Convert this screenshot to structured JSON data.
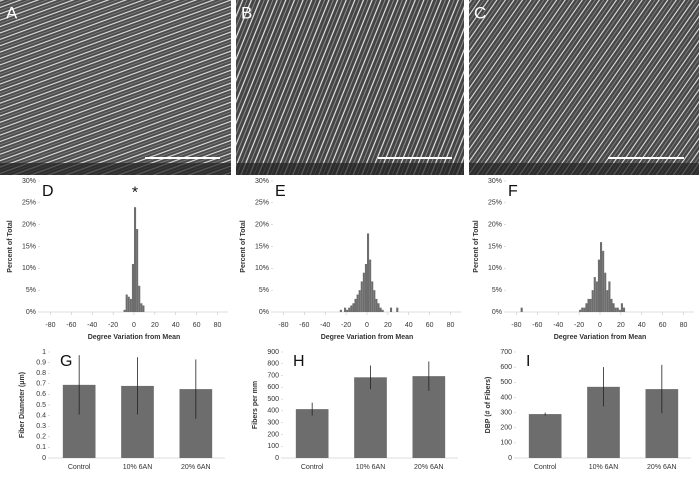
{
  "images": [
    {
      "label": "A"
    },
    {
      "label": "B"
    },
    {
      "label": "C"
    }
  ],
  "chart_data": [
    {
      "type": "histogram",
      "label": "D",
      "annotation": "*",
      "color": "#6d6d6d",
      "xlabel": "Degree Variation from Mean",
      "ylabel": "Percent of Total",
      "bins": [
        -10,
        -8,
        -6,
        -4,
        -2,
        0,
        2,
        4,
        6,
        8,
        10,
        12,
        14
      ],
      "values": [
        0.5,
        4,
        3.5,
        3,
        11,
        24,
        19,
        6,
        2,
        1.5,
        0,
        0
      ],
      "xlim": [
        -90,
        90
      ],
      "xticks": [
        -80,
        -60,
        -40,
        -20,
        0,
        20,
        40,
        60,
        80
      ],
      "ylim": [
        0,
        30
      ],
      "yticks": [
        {
          "value": 0,
          "label": "0%"
        },
        {
          "value": 5,
          "label": "5%"
        },
        {
          "value": 10,
          "label": "10%"
        },
        {
          "value": 15,
          "label": "15%"
        },
        {
          "value": 20,
          "label": "20%"
        },
        {
          "value": 25,
          "label": "25%"
        },
        {
          "value": 30,
          "label": "30%"
        }
      ]
    },
    {
      "type": "histogram",
      "label": "E",
      "color": "#6d6d6d",
      "xlabel": "Degree Variation from Mean",
      "ylabel": "Percent of Total",
      "bins": [
        -26,
        -24,
        -22,
        -20,
        -18,
        -16,
        -14,
        -12,
        -10,
        -8,
        -6,
        -4,
        -2,
        0,
        2,
        4,
        6,
        8,
        10,
        12,
        14,
        16,
        18,
        20,
        22,
        24,
        26,
        28,
        30
      ],
      "values": [
        0.5,
        0,
        1,
        0.5,
        1,
        1.5,
        2,
        3,
        4,
        5,
        7,
        9,
        11,
        18,
        12,
        7,
        5,
        3,
        2,
        1,
        0.5,
        0,
        0,
        0,
        1,
        0,
        0,
        1
      ],
      "xlim": [
        -90,
        90
      ],
      "xticks": [
        -80,
        -60,
        -40,
        -20,
        0,
        20,
        40,
        60,
        80
      ],
      "ylim": [
        0,
        30
      ],
      "yticks": [
        {
          "value": 0,
          "label": "0%"
        },
        {
          "value": 5,
          "label": "5%"
        },
        {
          "value": 10,
          "label": "10%"
        },
        {
          "value": 15,
          "label": "15%"
        },
        {
          "value": 20,
          "label": "20%"
        },
        {
          "value": 25,
          "label": "25%"
        },
        {
          "value": 30,
          "label": "30%"
        }
      ]
    },
    {
      "type": "histogram",
      "label": "F",
      "color": "#6d6d6d",
      "xlabel": "Degree Variation from Mean",
      "ylabel": "Percent of Total",
      "bins": [
        -76,
        -74,
        -72,
        -70,
        -68,
        -66,
        -64,
        -62,
        -60,
        -58,
        -56,
        -54,
        -52,
        -50,
        -48,
        -46,
        -44,
        -42,
        -40,
        -38,
        -36,
        -34,
        -32,
        -30,
        -28,
        -26,
        -24,
        -22,
        -20,
        -18,
        -16,
        -14,
        -12,
        -10,
        -8,
        -6,
        -4,
        -2,
        0,
        2,
        4,
        6,
        8,
        10,
        12,
        14,
        16,
        18,
        20,
        22,
        24
      ],
      "values": [
        1,
        0,
        0,
        0,
        0,
        0,
        0,
        0,
        0,
        0,
        0,
        0,
        0,
        0,
        0,
        0,
        0,
        0,
        0,
        0,
        0,
        0,
        0,
        0,
        0,
        0,
        0,
        0,
        0.5,
        1,
        1,
        2,
        3,
        3,
        5,
        8,
        7,
        12,
        16,
        14,
        9,
        5,
        7,
        3,
        2,
        1,
        1,
        0.5,
        2,
        1
      ],
      "xlim": [
        -90,
        90
      ],
      "xticks": [
        -80,
        -60,
        -40,
        -20,
        0,
        20,
        40,
        60,
        80
      ],
      "ylim": [
        0,
        30
      ],
      "yticks": [
        {
          "value": 0,
          "label": "0%"
        },
        {
          "value": 5,
          "label": "5%"
        },
        {
          "value": 10,
          "label": "10%"
        },
        {
          "value": 15,
          "label": "15%"
        },
        {
          "value": 20,
          "label": "20%"
        },
        {
          "value": 25,
          "label": "25%"
        },
        {
          "value": 30,
          "label": "30%"
        }
      ]
    },
    {
      "type": "bar",
      "label": "G",
      "color": "#6d6d6d",
      "ylabel": "Fiber Diameter (μm)",
      "categories": [
        "Control",
        "10% 6AN",
        "20% 6AN"
      ],
      "values": [
        0.69,
        0.68,
        0.65
      ],
      "errors": [
        0.28,
        0.27,
        0.28
      ],
      "ylim": [
        0,
        1
      ],
      "yticks": [
        0,
        0.1,
        0.2,
        0.3,
        0.4,
        0.5,
        0.6,
        0.7,
        0.8,
        0.9,
        1
      ]
    },
    {
      "type": "bar",
      "label": "H",
      "color": "#6d6d6d",
      "ylabel": "Fibers per mm",
      "categories": [
        "Control",
        "10% 6AN",
        "20% 6AN"
      ],
      "values": [
        415,
        685,
        695
      ],
      "errors": [
        55,
        100,
        125
      ],
      "ylim": [
        0,
        900
      ],
      "yticks": [
        0,
        100,
        200,
        300,
        400,
        500,
        600,
        700,
        800,
        900
      ]
    },
    {
      "type": "bar",
      "label": "I",
      "color": "#6d6d6d",
      "ylabel": "DBP (# of Fibers)",
      "categories": [
        "Control",
        "10% 6AN",
        "20% 6AN"
      ],
      "values": [
        290,
        470,
        455
      ],
      "errors": [
        10,
        130,
        160
      ],
      "ylim": [
        0,
        700
      ],
      "yticks": [
        0,
        100,
        200,
        300,
        400,
        500,
        600,
        700
      ]
    }
  ]
}
